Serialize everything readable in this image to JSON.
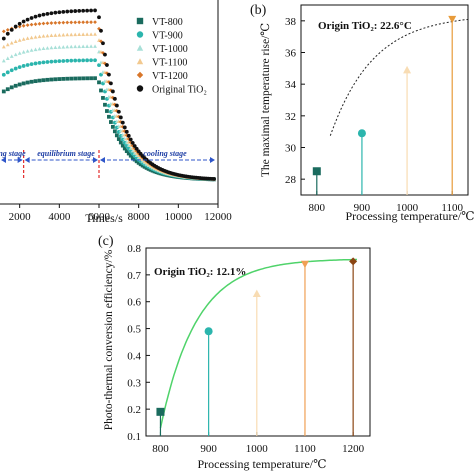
{
  "chart_data": [
    {
      "panel": "a",
      "type": "scatter",
      "xlabel": "Times/s",
      "x_ticks": [
        2000,
        4000,
        6000,
        8000,
        10000,
        12000
      ],
      "xlim": [
        0,
        12000
      ],
      "stage_labels": [
        "ng stage",
        "equilibrium stage",
        "cooling stage"
      ],
      "stage_boundaries": [
        2200,
        6000
      ],
      "legend_position": "top-right",
      "series": [
        {
          "name": "VT-800",
          "color": "#1a6b5e",
          "marker": "square",
          "plateau": 0.8
        },
        {
          "name": "VT-900",
          "color": "#2bb5ad",
          "marker": "circle",
          "plateau": 0.73
        },
        {
          "name": "VT-1000",
          "color": "#a8e0d8",
          "marker": "triangle-up",
          "plateau": 0.66
        },
        {
          "name": "VT-1100",
          "color": "#f2c98f",
          "marker": "triangle-up",
          "plateau": 0.59
        },
        {
          "name": "VT-1200",
          "color": "#d8762a",
          "marker": "diamond",
          "plateau": 0.53
        },
        {
          "name": "Original TiO₂",
          "color": "#111111",
          "marker": "circle",
          "plateau": 0.86
        }
      ]
    },
    {
      "panel": "b",
      "type": "scatter",
      "panel_label": "(b)",
      "annotation": "Origin TiO₂: 22.6°C",
      "xlabel": "Processing temperature/℃",
      "ylabel": "The maximal temperature rise/℃",
      "x_ticks": [
        800,
        900,
        1000,
        1100
      ],
      "y_ticks": [
        28,
        30,
        32,
        34,
        36,
        38
      ],
      "xlim": [
        765,
        1135
      ],
      "ylim": [
        27,
        39
      ],
      "fit": "dotted",
      "points": [
        {
          "x": 800,
          "y": 28.5,
          "color": "#1a6b5e",
          "marker": "square"
        },
        {
          "x": 900,
          "y": 30.9,
          "color": "#2bb5ad",
          "marker": "circle"
        },
        {
          "x": 1000,
          "y": 34.9,
          "color": "#f8dcb3",
          "marker": "triangle-up"
        },
        {
          "x": 1100,
          "y": 38.1,
          "color": "#e89b3a",
          "marker": "triangle-down"
        }
      ]
    },
    {
      "panel": "c",
      "type": "scatter",
      "panel_label": "(c)",
      "annotation": "Origin TiO₂: 12.1%",
      "xlabel": "Processing temperature/℃",
      "ylabel": "Photo-thermal conversion efficiency/%",
      "x_ticks": [
        800,
        900,
        1000,
        1100,
        1200
      ],
      "y_ticks": [
        0.1,
        0.2,
        0.3,
        0.4,
        0.5,
        0.6,
        0.7,
        0.8
      ],
      "xlim": [
        770,
        1235
      ],
      "ylim": [
        0.1,
        0.8
      ],
      "fit": "solid",
      "points": [
        {
          "x": 800,
          "y": 0.19,
          "color": "#1a6b5e",
          "marker": "square"
        },
        {
          "x": 900,
          "y": 0.49,
          "color": "#2bb5ad",
          "marker": "circle"
        },
        {
          "x": 1000,
          "y": 0.63,
          "color": "#f8dcb3",
          "marker": "triangle-up"
        },
        {
          "x": 1100,
          "y": 0.74,
          "color": "#f0a055",
          "marker": "triangle-down"
        },
        {
          "x": 1200,
          "y": 0.75,
          "color": "#8b4513",
          "marker": "diamond"
        }
      ]
    }
  ]
}
